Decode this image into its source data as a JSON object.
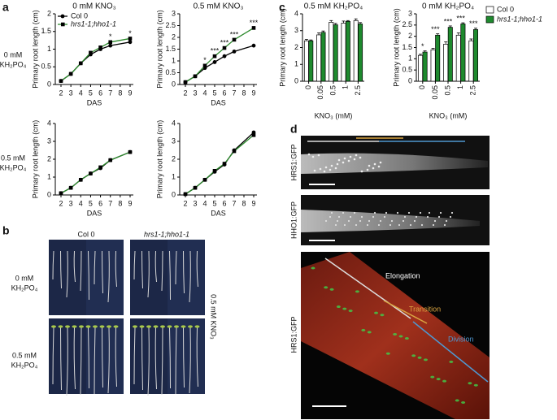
{
  "panel_labels": [
    "a",
    "b",
    "c",
    "d"
  ],
  "row_labels_a": [
    [
      "0 mM",
      "KH₂PO₄"
    ],
    [
      "0.5 mM",
      "KH₂PO₄"
    ]
  ],
  "chart_data": [
    {
      "type": "line",
      "title": "0 mM KNO₃",
      "x_label": "DAS",
      "y_label": "Primary root length (cm)",
      "x": [
        2,
        3,
        4,
        5,
        6,
        7,
        9
      ],
      "xlim": [
        2,
        9
      ],
      "xticks": [
        2,
        3,
        4,
        5,
        6,
        7,
        8,
        9
      ],
      "ylim": [
        0,
        2
      ],
      "yticks": [
        0,
        0.5,
        1,
        1.5,
        2
      ],
      "legend": "upper left",
      "series": [
        {
          "name": "Col 0",
          "color": "#000000",
          "marker": "circle",
          "values": [
            0.1,
            0.3,
            0.6,
            0.85,
            1.0,
            1.1,
            1.2
          ]
        },
        {
          "name": "hrs1-1;hho1-1",
          "color": "#2e8b2e",
          "marker": "square",
          "values": [
            0.1,
            0.3,
            0.6,
            0.9,
            1.05,
            1.2,
            1.3
          ]
        }
      ],
      "annotations": [
        {
          "x": 7,
          "text": "*"
        },
        {
          "x": 9,
          "text": "*"
        }
      ]
    },
    {
      "type": "line",
      "title": "0.5 mM KNO₃",
      "x_label": "DAS",
      "y_label": "Primary root length (cm)",
      "x": [
        2,
        3,
        4,
        5,
        6,
        7,
        9
      ],
      "xlim": [
        2,
        9
      ],
      "xticks": [
        2,
        3,
        4,
        5,
        6,
        7,
        8,
        9
      ],
      "ylim": [
        0,
        3
      ],
      "yticks": [
        0,
        0.5,
        1,
        1.5,
        2,
        2.5,
        3
      ],
      "series": [
        {
          "name": "Col 0",
          "color": "#000000",
          "marker": "circle",
          "values": [
            0.1,
            0.35,
            0.7,
            0.95,
            1.2,
            1.4,
            1.65
          ]
        },
        {
          "name": "hrs1-1;hho1-1",
          "color": "#2e8b2e",
          "marker": "square",
          "values": [
            0.1,
            0.35,
            0.8,
            1.2,
            1.55,
            1.9,
            2.4
          ]
        }
      ],
      "annotations": [
        {
          "x": 4,
          "text": "*"
        },
        {
          "x": 5,
          "text": "***"
        },
        {
          "x": 6,
          "text": "***"
        },
        {
          "x": 7,
          "text": "***"
        },
        {
          "x": 9,
          "text": "***"
        }
      ]
    },
    {
      "type": "line",
      "x_label": "DAS",
      "y_label": "Primary root length (cm)",
      "x": [
        2,
        3,
        4,
        5,
        6,
        7,
        9
      ],
      "xlim": [
        2,
        9
      ],
      "xticks": [
        2,
        3,
        4,
        5,
        6,
        7,
        8,
        9
      ],
      "ylim": [
        0,
        4
      ],
      "yticks": [
        0,
        1,
        2,
        3,
        4
      ],
      "series": [
        {
          "name": "Col 0",
          "color": "#000000",
          "marker": "circle",
          "values": [
            0.1,
            0.4,
            0.85,
            1.2,
            1.5,
            1.95,
            2.4
          ]
        },
        {
          "name": "hrs1-1;hho1-1",
          "color": "#2e8b2e",
          "marker": "square",
          "values": [
            0.1,
            0.4,
            0.85,
            1.2,
            1.55,
            1.95,
            2.4
          ]
        }
      ]
    },
    {
      "type": "line",
      "x_label": "DAS",
      "y_label": "Primary root length (cm)",
      "x": [
        2,
        3,
        4,
        5,
        6,
        7,
        9
      ],
      "xlim": [
        2,
        9
      ],
      "xticks": [
        2,
        3,
        4,
        5,
        6,
        7,
        8,
        9
      ],
      "ylim": [
        0,
        4
      ],
      "yticks": [
        0,
        1,
        2,
        3,
        4
      ],
      "series": [
        {
          "name": "Col 0",
          "color": "#000000",
          "marker": "circle",
          "values": [
            0.05,
            0.4,
            0.85,
            1.3,
            1.7,
            2.5,
            3.5
          ]
        },
        {
          "name": "hrs1-1;hho1-1",
          "color": "#2e8b2e",
          "marker": "square",
          "values": [
            0.05,
            0.4,
            0.85,
            1.35,
            1.75,
            2.45,
            3.35
          ]
        }
      ]
    },
    {
      "type": "bar",
      "title": "0.5 mM KH₂PO₄",
      "x_label": "KNO₃ (mM)",
      "y_label": "Primary root length (cm)",
      "categories": [
        "0",
        "0.05",
        "0.5",
        "1",
        "2.5"
      ],
      "ylim": [
        0,
        4
      ],
      "yticks": [
        0,
        1,
        2,
        3,
        4
      ],
      "series": [
        {
          "name": "Col 0",
          "color": "#ffffff",
          "values": [
            2.4,
            2.75,
            3.5,
            3.45,
            3.6
          ],
          "errors": [
            0.08,
            0.12,
            0.1,
            0.12,
            0.1
          ]
        },
        {
          "name": "hrs1-1;hho1-1",
          "color": "#1e8a2e",
          "values": [
            2.4,
            2.9,
            3.35,
            3.55,
            3.4
          ],
          "errors": [
            0.05,
            0.08,
            0.08,
            0.05,
            0.08
          ]
        }
      ]
    },
    {
      "type": "bar",
      "title": "0 mM KH₂PO₄",
      "x_label": "KNO₃ (mM)",
      "y_label": "Primary root length (cm)",
      "categories": [
        "0",
        "0.05",
        "0.5",
        "1",
        "2.5"
      ],
      "ylim": [
        0,
        3
      ],
      "yticks": [
        0,
        0.5,
        1,
        1.5,
        2,
        2.5,
        3
      ],
      "legend": "right",
      "series": [
        {
          "name": "Col 0",
          "color": "#ffffff",
          "values": [
            1.15,
            1.4,
            1.65,
            2.05,
            1.8
          ],
          "errors": [
            0.05,
            0.06,
            0.1,
            0.1,
            0.08
          ]
        },
        {
          "name": "hrs1-1;hho1-1",
          "color": "#1e8a2e",
          "values": [
            1.3,
            2.05,
            2.4,
            2.55,
            2.3
          ],
          "errors": [
            0.05,
            0.06,
            0.06,
            0.05,
            0.06
          ]
        }
      ],
      "annotations": [
        {
          "x": "0",
          "text": "*"
        },
        {
          "x": "0.05",
          "text": "***"
        },
        {
          "x": "0.5",
          "text": "***"
        },
        {
          "x": "1",
          "text": "***"
        },
        {
          "x": "2.5",
          "text": "***"
        }
      ]
    }
  ],
  "photos_b": {
    "columns": [
      "Col 0",
      "hrs1-1;hho1-1"
    ],
    "rows": [
      [
        "0 mM",
        "KH₂PO₄"
      ],
      [
        "0.5 mM",
        "KH₂PO₄"
      ]
    ],
    "side_label": "0.5 mM KNO₃"
  },
  "photos_d": {
    "labels": [
      "HRS1:GFP",
      "HHO1:GFP",
      "HRS1:GFP"
    ],
    "zones": [
      "Elongation",
      "Transition",
      "Division"
    ]
  }
}
